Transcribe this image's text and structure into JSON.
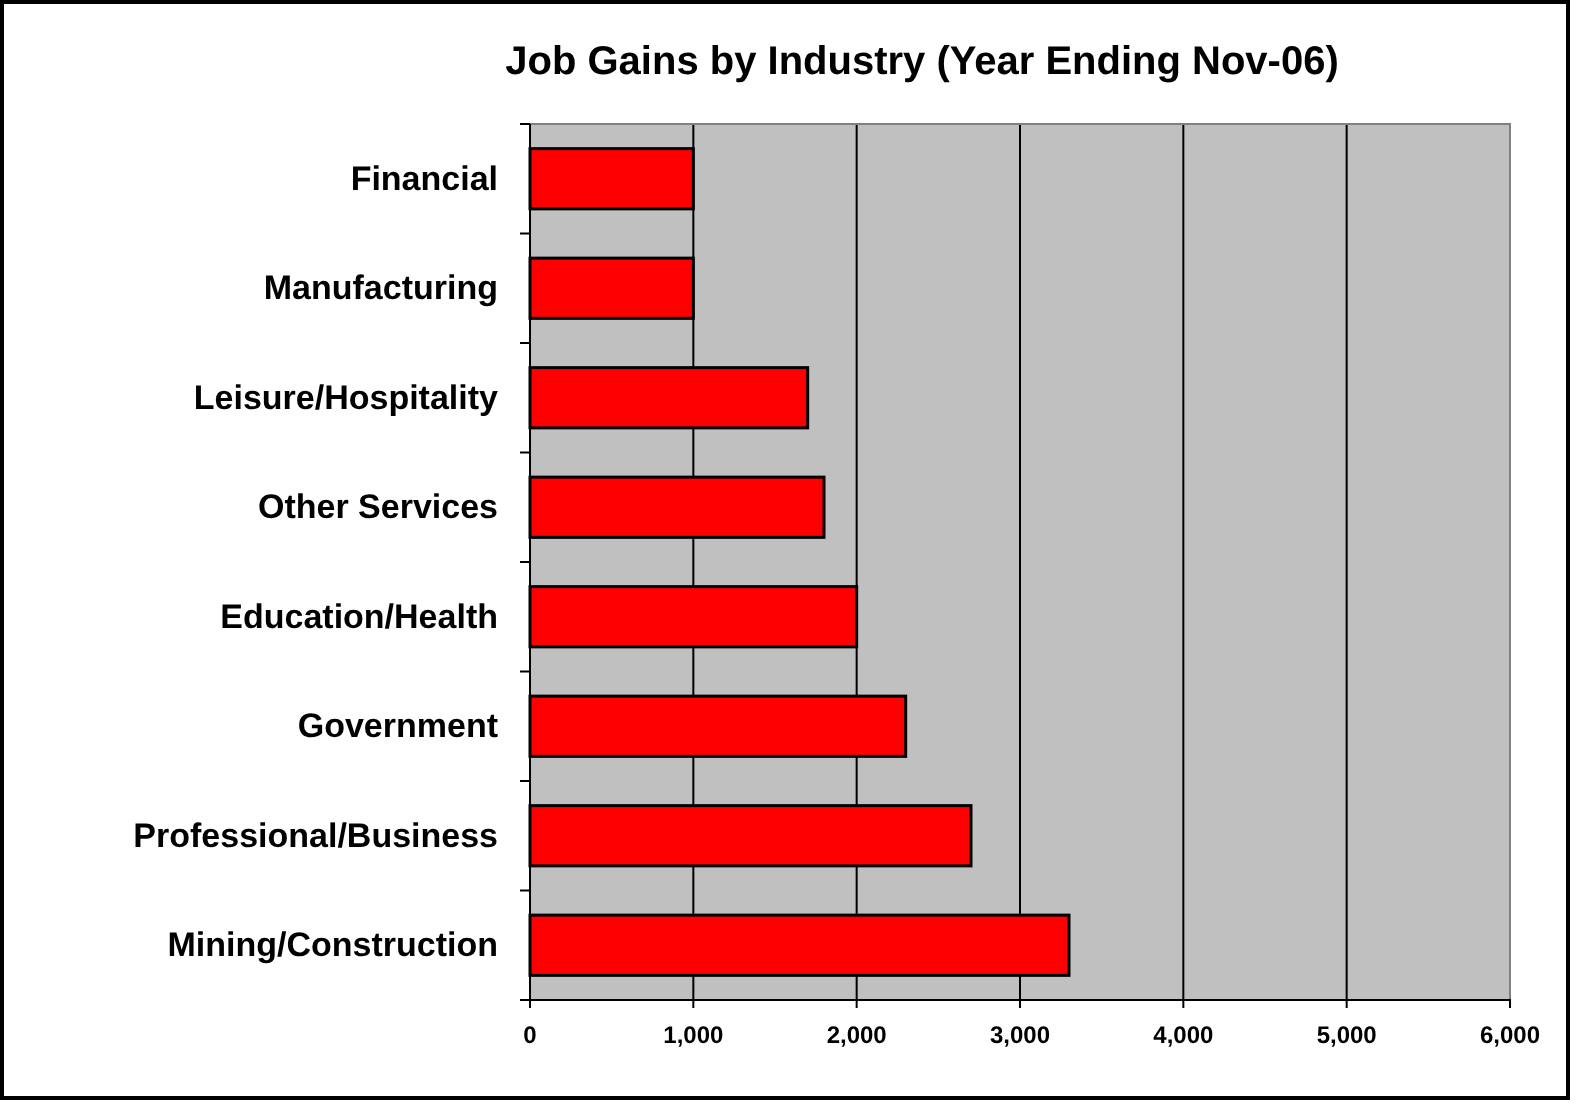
{
  "chart_data": {
    "type": "bar",
    "orientation": "horizontal",
    "title": "Job Gains by Industry (Year Ending Nov-06)",
    "categories": [
      "Financial",
      "Manufacturing",
      "Leisure/Hospitality",
      "Other Services",
      "Education/Health",
      "Government",
      "Professional/Business",
      "Mining/Construction"
    ],
    "values": [
      1000,
      1000,
      1700,
      1800,
      2000,
      2300,
      2700,
      3300
    ],
    "color": "#ff0000",
    "xlim": [
      0,
      6000
    ],
    "xticks": [
      {
        "value": 0,
        "label": "0"
      },
      {
        "value": 1000,
        "label": "1,000"
      },
      {
        "value": 2000,
        "label": "2,000"
      },
      {
        "value": 3000,
        "label": "3,000"
      },
      {
        "value": 4000,
        "label": "4,000"
      },
      {
        "value": 5000,
        "label": "5,000"
      },
      {
        "value": 6000,
        "label": "6,000"
      }
    ],
    "grid": "x"
  }
}
